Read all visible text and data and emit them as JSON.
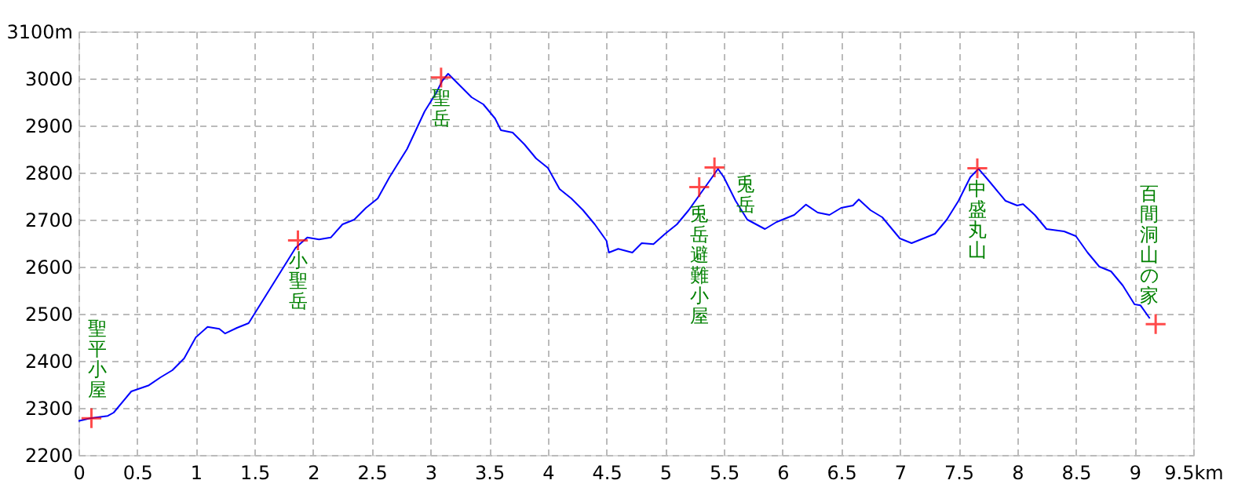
{
  "chart_data": {
    "type": "line",
    "xlim": [
      0,
      9.5
    ],
    "ylim": [
      2200,
      3100
    ],
    "xticks": [
      0,
      0.5,
      1,
      1.5,
      2,
      2.5,
      3,
      3.5,
      4,
      4.5,
      5,
      5.5,
      6,
      6.5,
      7,
      7.5,
      8,
      8.5,
      9,
      {
        "value": 9.5,
        "label": "9.5km"
      }
    ],
    "yticks": [
      2200,
      2300,
      2400,
      2500,
      2600,
      2700,
      2800,
      2900,
      3000,
      {
        "value": 3100,
        "label": "3100m"
      }
    ],
    "grid": true,
    "series": [
      {
        "color": "#0000ff",
        "line_style": "solid",
        "marker": "none",
        "x": [
          0,
          0.1,
          0.25,
          0.3,
          0.45,
          0.6,
          0.7,
          0.8,
          0.9,
          1.0,
          1.1,
          1.2,
          1.25,
          1.35,
          1.45,
          1.55,
          1.7,
          1.85,
          1.95,
          2.05,
          2.15,
          2.25,
          2.35,
          2.45,
          2.55,
          2.65,
          2.8,
          2.95,
          3.05,
          3.1,
          3.15,
          3.25,
          3.35,
          3.45,
          3.55,
          3.6,
          3.7,
          3.8,
          3.9,
          4.0,
          4.1,
          4.2,
          4.3,
          4.4,
          4.5,
          4.52,
          4.6,
          4.72,
          4.8,
          4.9,
          5.0,
          5.1,
          5.2,
          5.3,
          5.4,
          5.45,
          5.5,
          5.6,
          5.7,
          5.85,
          5.95,
          6.1,
          6.2,
          6.3,
          6.4,
          6.5,
          6.6,
          6.65,
          6.75,
          6.85,
          7.0,
          7.1,
          7.2,
          7.3,
          7.4,
          7.5,
          7.6,
          7.67,
          7.75,
          7.9,
          8.0,
          8.05,
          8.15,
          8.25,
          8.4,
          8.5,
          8.6,
          8.7,
          8.8,
          8.9,
          9.0,
          9.05,
          9.13
        ],
        "values": [
          2272,
          2278,
          2283,
          2290,
          2335,
          2348,
          2365,
          2380,
          2405,
          2450,
          2472,
          2468,
          2458,
          2470,
          2480,
          2520,
          2580,
          2640,
          2662,
          2658,
          2662,
          2690,
          2700,
          2725,
          2745,
          2790,
          2850,
          2930,
          2970,
          2995,
          3010,
          2985,
          2960,
          2945,
          2915,
          2890,
          2885,
          2860,
          2830,
          2810,
          2765,
          2745,
          2720,
          2690,
          2655,
          2630,
          2638,
          2630,
          2650,
          2648,
          2670,
          2690,
          2720,
          2755,
          2790,
          2808,
          2790,
          2740,
          2700,
          2680,
          2695,
          2710,
          2732,
          2715,
          2710,
          2725,
          2730,
          2743,
          2720,
          2705,
          2660,
          2650,
          2660,
          2670,
          2700,
          2740,
          2790,
          2808,
          2785,
          2740,
          2730,
          2733,
          2710,
          2680,
          2675,
          2665,
          2630,
          2600,
          2590,
          2560,
          2520,
          2518,
          2490
        ]
      },
      {
        "type": "scatter",
        "color": "#ff0000",
        "marker": "cross",
        "x": [
          0.11,
          1.87,
          3.09,
          5.29,
          5.42,
          7.66,
          9.18
        ],
        "values": [
          2278,
          2656,
          3002,
          2769,
          2811,
          2809,
          2478
        ]
      }
    ],
    "annotations": [
      {
        "text": "聖平小屋",
        "x": 0.11,
        "y": 2278
      },
      {
        "text": "小聖岳",
        "x": 1.87,
        "y": 2656
      },
      {
        "text": "聖岳",
        "x": 3.09,
        "y": 3002
      },
      {
        "text": "兎岳避難小屋",
        "x": 5.29,
        "y": 2769
      },
      {
        "text": "兎岳",
        "x": 5.42,
        "y": 2811
      },
      {
        "text": "中盛丸山",
        "x": 7.66,
        "y": 2809
      },
      {
        "text": "百間洞山の家",
        "x": 9.18,
        "y": 2478
      }
    ]
  }
}
